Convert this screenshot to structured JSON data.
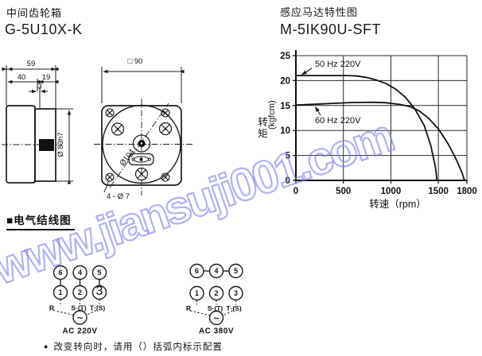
{
  "gearbox": {
    "title": "中间齿轮箱",
    "model": "G-5U10X-K",
    "side_view": {
      "dim_overall": "59",
      "dim_body": "40",
      "dim_boss": "19",
      "dim_land": "3",
      "dim_shaft": "Ø 83h7"
    },
    "front_view": {
      "dim_square": "□ 90",
      "dim_diagonal": "Ø104",
      "dim_holes": "4 - Ø 7"
    }
  },
  "motor": {
    "title": "感应马达特性图",
    "model": "M-5IK90U-SFT"
  },
  "chart_data": {
    "type": "line",
    "title": "",
    "xlabel": "转速（rpm）",
    "ylabel": "转矩 (kgfcm)",
    "ylabel_cn": "转矩",
    "ylabel_unit": "(kgfcm)",
    "xlim": [
      0,
      1800
    ],
    "ylim": [
      0,
      25
    ],
    "x_ticks": [
      0,
      500,
      1000,
      1500,
      1800
    ],
    "y_ticks": [
      0,
      5,
      10,
      15,
      20,
      25
    ],
    "grid": true,
    "legend_position": "inline annotations with arrows",
    "series": [
      {
        "name": "50 Hz 220V",
        "points": [
          [
            0,
            21
          ],
          [
            200,
            21
          ],
          [
            400,
            21
          ],
          [
            550,
            21
          ],
          [
            650,
            20.9
          ],
          [
            750,
            20.6
          ],
          [
            850,
            20.1
          ],
          [
            950,
            19.4
          ],
          [
            1050,
            18.3
          ],
          [
            1150,
            16.7
          ],
          [
            1250,
            14.4
          ],
          [
            1350,
            11.0
          ],
          [
            1420,
            7.0
          ],
          [
            1470,
            2.5
          ],
          [
            1485,
            0
          ]
        ]
      },
      {
        "name": "60 Hz 220V",
        "points": [
          [
            0,
            15.1
          ],
          [
            200,
            15.25
          ],
          [
            400,
            15.45
          ],
          [
            600,
            15.6
          ],
          [
            800,
            15.65
          ],
          [
            950,
            15.55
          ],
          [
            1100,
            15.2
          ],
          [
            1200,
            14.8
          ],
          [
            1300,
            13.9
          ],
          [
            1400,
            12.4
          ],
          [
            1500,
            10.3
          ],
          [
            1600,
            7.4
          ],
          [
            1680,
            4.5
          ],
          [
            1750,
            1.5
          ],
          [
            1775,
            0
          ]
        ]
      }
    ]
  },
  "wiring": {
    "heading": "■电气结线图",
    "diagrams": [
      {
        "caption": "AC 220V",
        "top": [
          "6",
          "4",
          "5"
        ],
        "bottom": [
          "1",
          "2",
          "3"
        ],
        "phases": [
          "R",
          "S·(T)",
          "T·(S)"
        ],
        "source": "~"
      },
      {
        "caption": "AC 380V",
        "top": [
          "6",
          "4",
          "5"
        ],
        "bottom": [
          "1",
          "2",
          "3"
        ],
        "phases": [
          "R",
          "S·(T)",
          "T·(S)"
        ],
        "source": "~"
      }
    ],
    "note_bullet": "●",
    "note": "改变转向时，请用（）括弧内标示配置"
  },
  "watermark": {
    "text": "www.jiansuji001.com",
    "color": "#8080ee"
  }
}
